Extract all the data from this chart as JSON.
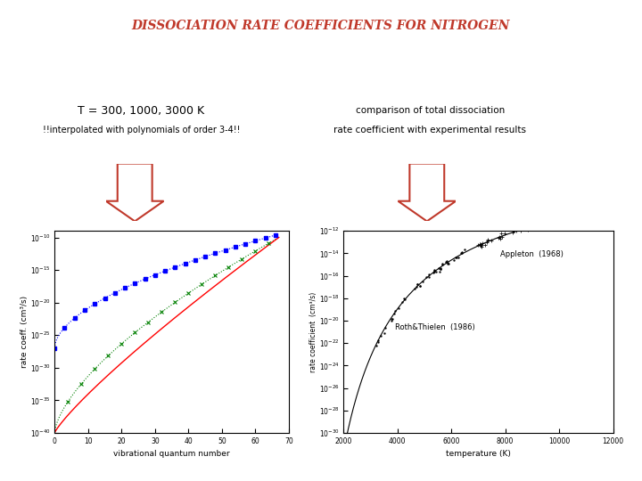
{
  "title": "DISSOCIATION RATE COEFFICIENTS FOR NITROGEN",
  "title_color": "#c0392b",
  "title_fontsize": 10,
  "left_label_line1": "T = 300, 1000, 3000 K",
  "left_label_line2": "!!interpolated with polynomials of order 3-4!!",
  "right_label_line1": "comparison of total dissociation",
  "right_label_line2": "rate coefficient with experimental results",
  "bg_color": "#ffffff",
  "plot1_xlabel": "vibrational quantum number",
  "plot1_ylabel": "rate coeff. (cm³/s)",
  "plot2_xlabel": "temperature (K)",
  "plot2_ylabel": "rate coefficient  (cm³/s)",
  "arrow_color": "#c0392b",
  "bottom_bar_color": "#c0392b"
}
